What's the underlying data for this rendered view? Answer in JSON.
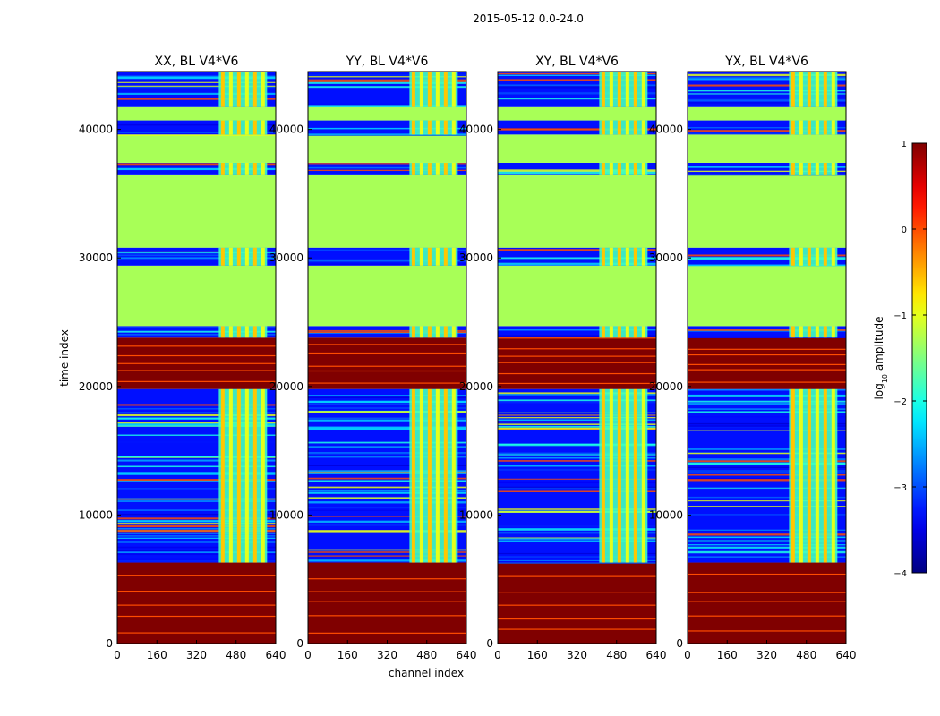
{
  "chart_data": {
    "type": "heatmap",
    "suptitle": "2015-05-12 0.0-24.0",
    "xlabel": "channel index",
    "ylabel": "time index",
    "xlim": [
      0,
      640
    ],
    "ylim": [
      0,
      44500
    ],
    "xticks": [
      "0",
      "160",
      "320",
      "480",
      "640"
    ],
    "yticks": [
      "0",
      "10000",
      "20000",
      "30000",
      "40000"
    ],
    "panels": [
      {
        "title": "XX, BL V4*V6",
        "variant": 0
      },
      {
        "title": "YY, BL V4*V6",
        "variant": 1
      },
      {
        "title": "XY, BL V4*V6",
        "variant": 2
      },
      {
        "title": "YX, BL V4*V6",
        "variant": 3
      }
    ],
    "colorbar": {
      "label": "log",
      "label_sub": "10",
      "label_rest": " amplitude",
      "range": [
        -4,
        1
      ],
      "ticks": [
        "1",
        "0",
        "−1",
        "−2",
        "−3",
        "−4"
      ],
      "colormap": "jet"
    },
    "time_segments": [
      {
        "from": 0,
        "to": 6300,
        "level": "high",
        "value": 1.0
      },
      {
        "from": 6300,
        "to": 19800,
        "level": "noisy",
        "value": -3.3
      },
      {
        "from": 19800,
        "to": 23800,
        "level": "high",
        "value": 1.0
      },
      {
        "from": 23800,
        "to": 24700,
        "level": "noisy",
        "value": -3.3
      },
      {
        "from": 24700,
        "to": 29400,
        "level": "flagged",
        "value": -1.3
      },
      {
        "from": 29400,
        "to": 30800,
        "level": "noisy",
        "value": -3.3
      },
      {
        "from": 30800,
        "to": 36500,
        "level": "flagged",
        "value": -1.3
      },
      {
        "from": 36500,
        "to": 37400,
        "level": "noisy",
        "value": -3.3
      },
      {
        "from": 37400,
        "to": 39600,
        "level": "flagged",
        "value": -1.3
      },
      {
        "from": 39600,
        "to": 40700,
        "level": "noisy",
        "value": -3.3
      },
      {
        "from": 40700,
        "to": 41800,
        "level": "flagged",
        "value": -1.3
      },
      {
        "from": 41800,
        "to": 44500,
        "level": "noisy",
        "value": -3.3
      }
    ],
    "rfi_channels": [
      {
        "from": 410,
        "to": 605,
        "value": -1.8
      }
    ]
  }
}
